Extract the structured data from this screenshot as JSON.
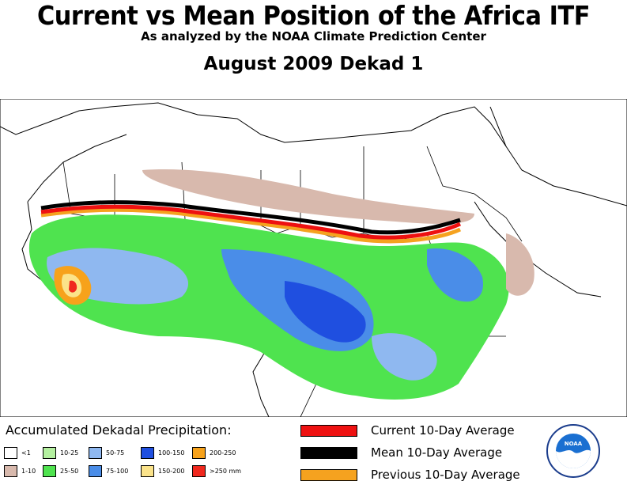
{
  "header": {
    "title": "Current vs Mean Position of the Africa ITF",
    "subtitle": "As analyzed by the NOAA Climate Prediction Center",
    "period": "August 2009 Dekad 1"
  },
  "legend": {
    "title": "Accumulated Dekadal Precipitation:",
    "classes": [
      {
        "label": "<1",
        "color": "#ffffff"
      },
      {
        "label": "1-10",
        "color": "#d8b9ad"
      },
      {
        "label": "10-25",
        "color": "#b4f0a0"
      },
      {
        "label": "25-50",
        "color": "#4fe34f"
      },
      {
        "label": "50-75",
        "color": "#8fb8f0"
      },
      {
        "label": "75-100",
        "color": "#4a8de8"
      },
      {
        "label": "100-150",
        "color": "#1f4fe0"
      },
      {
        "label": "150-200",
        "color": "#fbe38a"
      },
      {
        "label": "200-250",
        "color": "#f7a21b"
      },
      {
        "label": ">250 mm",
        "color": "#f0281e"
      }
    ]
  },
  "lines_legend": [
    {
      "label": "Current 10-Day Average",
      "color": "#ee1111"
    },
    {
      "label": "Mean 10-Day Average",
      "color": "#000000"
    },
    {
      "label": "Previous 10-Day Average",
      "color": "#f5a21f"
    }
  ],
  "logo": {
    "name": "NOAA",
    "text": "NOAA"
  }
}
